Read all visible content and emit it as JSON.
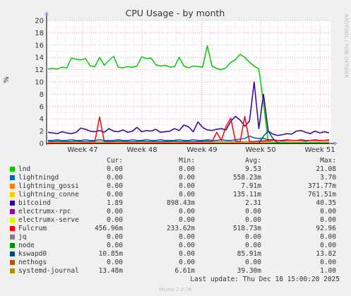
{
  "chart_data": {
    "type": "line",
    "title": "CPU Usage - by month",
    "ylabel": "%",
    "ylim": [
      0,
      20
    ],
    "yticks": [
      0,
      2,
      4,
      6,
      8,
      10,
      12,
      14,
      16,
      18,
      20
    ],
    "xticks": [
      "Week 47",
      "Week 48",
      "Week 49",
      "Week 50",
      "Week 51"
    ],
    "side_label": "RRDTOOL / TOBI OETIKER",
    "grid": true,
    "series": [
      {
        "name": "lnd",
        "color": "#00cc00",
        "values": [
          12.1,
          12.2,
          12.1,
          12.4,
          12.3,
          13.9,
          13.7,
          13.6,
          13.8,
          12.6,
          12.5,
          14.0,
          12.7,
          13.5,
          14.2,
          12.4,
          12.3,
          12.5,
          12.4,
          12.6,
          14.1,
          13.8,
          13.9,
          12.8,
          12.6,
          12.7,
          12.4,
          12.5,
          14.0,
          12.6,
          12.3,
          12.6,
          12.5,
          12.4,
          15.9,
          12.6,
          12.2,
          12.0,
          12.3,
          13.2,
          13.6,
          14.5,
          14.0,
          13.2,
          12.6,
          12.1,
          6.5,
          0.3,
          0.2,
          0.2,
          0.2,
          0.2,
          0.2,
          0.2,
          0.2,
          0.2,
          0.2,
          0.2,
          0.2,
          0.2,
          0.2
        ]
      },
      {
        "name": "lightningd",
        "color": "#0066b3",
        "values": [
          0.5,
          0.5,
          0.6,
          0.5,
          0.5,
          0.6,
          0.5,
          0.5,
          0.6,
          0.5,
          0.5,
          0.6,
          0.5,
          0.5,
          0.5,
          0.6,
          0.5,
          0.5,
          0.6,
          0.5,
          0.5,
          0.6,
          0.5,
          0.5,
          0.6,
          0.5,
          0.5,
          0.5,
          0.6,
          0.5,
          0.5,
          0.6,
          0.5,
          0.5,
          0.6,
          0.5,
          0.5,
          0.6,
          0.5,
          0.5,
          0.6,
          0.7,
          0.8,
          1.2,
          0.9,
          0.8,
          0.8,
          0.6,
          0.6,
          0.5,
          0.5,
          0.6,
          0.5,
          0.5,
          0.6,
          0.5,
          0.5,
          0.6,
          0.5,
          0.5,
          0.6
        ]
      },
      {
        "name": "lightning_gossi",
        "color": "#ff8000",
        "values": [
          0.3,
          0.3,
          0.3,
          0.3,
          0.3,
          0.3,
          0.3,
          0.3,
          0.3,
          0.3,
          0.3,
          0.3,
          0.3,
          0.3,
          0.3,
          0.3,
          0.3,
          0.3,
          0.3,
          0.3,
          0.3,
          0.3,
          0.3,
          0.3,
          0.3,
          0.3,
          0.3,
          0.3,
          0.3,
          0.3,
          0.3,
          0.3,
          0.3,
          0.3,
          0.3,
          0.3,
          0.3,
          0.3,
          0.3,
          0.3,
          0.3,
          0.3,
          0.3,
          0.3,
          0.3,
          0.3,
          0.3,
          0.2,
          0.1,
          0.1,
          0.1,
          0.1,
          0.1,
          0.1,
          0.1,
          0.1,
          0.1,
          0.1,
          0.1,
          0.1,
          0.1
        ]
      },
      {
        "name": "lightning_conne",
        "color": "#ffcc00",
        "values": [
          0.1,
          0.1,
          0.1,
          0.1,
          0.1,
          0.1,
          0.1,
          0.1,
          0.1,
          0.1,
          0.1,
          0.1,
          0.1,
          0.1,
          0.1,
          0.1,
          0.1,
          0.1,
          0.1,
          0.1,
          0.1,
          0.1,
          0.1,
          0.1,
          0.1,
          0.1,
          0.1,
          0.1,
          0.1,
          0.1,
          0.1,
          0.1,
          0.1,
          0.1,
          0.1,
          0.1,
          0.1,
          0.1,
          0.1,
          0.1,
          0.1,
          0.1,
          0.1,
          0.1,
          0.1,
          0.1,
          0.1,
          0.1,
          0.1,
          0.1,
          0.1,
          0.1,
          0.1,
          0.1,
          0.1,
          0.1,
          0.1,
          0.1,
          0.1,
          0.1,
          0.1
        ]
      },
      {
        "name": "bitcoind",
        "color": "#330099",
        "values": [
          1.8,
          1.7,
          1.6,
          1.9,
          1.7,
          1.6,
          1.8,
          2.5,
          2.3,
          2.0,
          1.9,
          2.1,
          1.8,
          2.4,
          2.0,
          1.9,
          2.2,
          1.8,
          2.0,
          2.6,
          1.9,
          2.1,
          2.0,
          2.3,
          1.8,
          1.9,
          2.0,
          2.4,
          2.1,
          3.0,
          2.7,
          1.9,
          3.5,
          2.6,
          2.2,
          2.1,
          2.3,
          2.4,
          2.2,
          3.6,
          4.4,
          3.8,
          2.8,
          3.6,
          10.0,
          2.4,
          8.0,
          2.0,
          1.5,
          1.3,
          1.4,
          1.6,
          1.5,
          2.0,
          2.1,
          1.8,
          1.6,
          2.0,
          1.7,
          1.9,
          1.7
        ]
      },
      {
        "name": "electrumx-rpc",
        "color": "#990099",
        "values": [
          0,
          0,
          0,
          0,
          0,
          0,
          0,
          0,
          0,
          0,
          0,
          0,
          0,
          0,
          0,
          0,
          0,
          0,
          0,
          0,
          0,
          0,
          0,
          0,
          0,
          0,
          0,
          0,
          0,
          0,
          0,
          0,
          0,
          0,
          0,
          0,
          0,
          0,
          0,
          0,
          0,
          0,
          0,
          0,
          0,
          0,
          0,
          0,
          0,
          0,
          0,
          0,
          0,
          0,
          0,
          0,
          0,
          0,
          0,
          0,
          0
        ]
      },
      {
        "name": "electrumx-serve",
        "color": "#ccff00",
        "values": [
          0,
          0,
          0,
          0,
          0,
          0,
          0,
          0,
          0,
          0,
          0,
          0,
          0,
          0,
          0,
          0,
          0,
          0,
          0,
          0,
          0,
          0,
          0,
          0,
          0,
          0,
          0,
          0,
          0,
          0,
          0,
          0,
          0,
          0,
          0,
          0,
          0,
          0,
          0,
          0,
          0,
          0,
          0,
          0,
          0,
          0,
          0,
          0,
          0,
          0,
          0,
          0,
          0,
          0,
          0,
          0,
          0,
          0,
          0,
          0,
          0
        ]
      },
      {
        "name": "Fulcrum",
        "color": "#ff0000",
        "values": [
          0.3,
          0.3,
          0.4,
          0.3,
          0.3,
          0.3,
          0.4,
          0.3,
          0.3,
          0.3,
          0.3,
          4.3,
          0.3,
          0.3,
          0.3,
          0.4,
          0.3,
          0.3,
          0.3,
          0.3,
          0.4,
          0.3,
          0.3,
          0.3,
          0.3,
          0.3,
          0.3,
          0.4,
          0.3,
          0.3,
          0.3,
          0.3,
          0.3,
          0.3,
          0.4,
          0.3,
          1.8,
          0.5,
          2.8,
          4.1,
          0.4,
          0.3,
          4.4,
          0.3,
          0.3,
          0.4,
          0.4,
          0.5,
          0.5,
          0.5,
          0.4,
          0.5,
          0.5,
          0.5,
          0.5,
          0.4,
          0.5,
          0.5,
          0.5,
          0.5,
          0.5
        ]
      },
      {
        "name": "jq",
        "color": "#808080",
        "values": [
          0,
          0,
          0,
          0,
          0,
          0,
          0,
          0,
          0,
          0,
          0,
          0,
          0,
          0,
          0,
          0,
          0,
          0,
          0,
          0,
          0,
          0,
          0,
          0,
          0,
          0,
          0,
          0,
          0,
          0,
          0,
          0,
          0,
          0,
          0,
          0,
          0,
          0,
          0,
          0,
          0,
          0,
          0,
          0,
          0,
          0,
          0,
          0,
          0,
          0,
          0,
          0,
          0,
          0,
          0,
          0,
          0,
          0,
          0,
          0,
          0
        ]
      },
      {
        "name": "node",
        "color": "#008f00",
        "values": [
          0,
          0,
          0,
          0,
          0,
          0,
          0,
          0,
          0,
          0,
          0,
          0,
          0,
          0,
          0,
          0,
          0,
          0,
          0,
          0,
          0,
          0,
          0,
          0,
          0,
          0,
          0,
          0,
          0,
          0,
          0,
          0,
          0,
          0,
          0,
          0,
          0,
          0,
          0,
          0,
          0,
          0,
          0,
          0,
          0,
          0,
          0,
          0,
          0,
          0,
          0,
          0,
          0,
          0,
          0,
          0,
          0,
          0,
          0,
          0,
          0
        ]
      },
      {
        "name": "kswapd0",
        "color": "#00487d",
        "values": [
          0,
          0,
          0,
          0,
          0,
          0,
          0,
          0,
          0,
          0,
          0,
          0,
          0,
          0,
          0,
          0,
          0,
          0,
          0,
          0,
          0,
          0,
          0,
          0,
          0,
          0,
          0,
          0,
          0,
          0,
          0,
          0,
          0,
          0,
          0,
          0,
          0,
          0,
          0,
          0,
          0,
          0,
          0,
          0,
          0,
          0,
          1.2,
          2.0,
          0.8,
          0.1,
          0,
          0,
          0,
          0,
          0,
          0,
          0,
          0,
          0,
          0,
          0
        ]
      },
      {
        "name": "nethogs",
        "color": "#b35a00",
        "values": [
          0,
          0,
          0,
          0,
          0,
          0,
          0,
          0,
          0,
          0,
          0,
          0,
          0,
          0,
          0,
          0,
          0,
          0,
          0,
          0,
          0,
          0,
          0,
          0,
          0,
          0,
          0,
          0,
          0,
          0,
          0,
          0,
          0,
          0,
          0,
          0,
          0,
          0,
          0,
          0,
          0,
          0,
          0,
          0,
          0,
          0,
          0,
          0,
          0,
          0,
          0,
          0,
          0,
          0,
          0,
          0,
          0,
          0,
          0,
          0,
          0
        ]
      },
      {
        "name": "systemd-journal",
        "color": "#b38f00",
        "values": [
          0,
          0,
          0,
          0,
          0,
          0,
          0,
          0,
          0,
          0,
          0,
          0,
          0,
          0,
          0,
          0,
          0,
          0,
          0,
          0,
          0,
          0,
          0,
          0,
          0,
          0,
          0,
          0,
          0,
          0,
          0,
          0,
          0,
          0,
          0,
          0,
          0,
          0,
          0,
          0,
          0,
          0,
          0,
          0,
          0,
          0,
          0,
          0,
          0,
          0,
          0,
          0,
          0,
          0,
          0,
          0,
          0,
          0,
          0,
          0,
          0
        ]
      }
    ]
  },
  "legend": {
    "headers": {
      "cur": "Cur:",
      "min": "Min:",
      "avg": "Avg:",
      "max": "Max:"
    },
    "rows": [
      {
        "name": "lnd",
        "color": "#00cc00",
        "cur": "0.00",
        "min": "0.00",
        "avg": "9.53",
        "max": "21.08"
      },
      {
        "name": "lightningd",
        "color": "#0066b3",
        "cur": "0.00",
        "min": "0.00",
        "avg": "558.23m",
        "max": "3.70"
      },
      {
        "name": "lightning_gossi",
        "color": "#ff8000",
        "cur": "0.00",
        "min": "0.00",
        "avg": "7.91m",
        "max": "371.77m"
      },
      {
        "name": "lightning_conne",
        "color": "#ffcc00",
        "cur": "0.00",
        "min": "0.00",
        "avg": "135.11m",
        "max": "761.51m"
      },
      {
        "name": "bitcoind",
        "color": "#330099",
        "cur": "1.89",
        "min": "898.43m",
        "avg": "2.31",
        "max": "40.35"
      },
      {
        "name": "electrumx-rpc",
        "color": "#990099",
        "cur": "0.00",
        "min": "0.00",
        "avg": "0.00",
        "max": "0.00"
      },
      {
        "name": "electrumx-serve",
        "color": "#ccff00",
        "cur": "0.00",
        "min": "0.00",
        "avg": "0.00",
        "max": "0.00"
      },
      {
        "name": "Fulcrum",
        "color": "#ff0000",
        "cur": "456.96m",
        "min": "233.62m",
        "avg": "518.73m",
        "max": "92.96"
      },
      {
        "name": "jq",
        "color": "#808080",
        "cur": "0.00",
        "min": "0.00",
        "avg": "0.00",
        "max": "0.00"
      },
      {
        "name": "node",
        "color": "#008f00",
        "cur": "0.00",
        "min": "0.00",
        "avg": "0.00",
        "max": "0.00"
      },
      {
        "name": "kswapd0",
        "color": "#00487d",
        "cur": "10.85m",
        "min": "0.00",
        "avg": "85.91m",
        "max": "13.82"
      },
      {
        "name": "nethogs",
        "color": "#b35a00",
        "cur": "0.00",
        "min": "0.00",
        "avg": "0.00",
        "max": "0.00"
      },
      {
        "name": "systemd-journal",
        "color": "#b38f00",
        "cur": "13.48m",
        "min": "6.61m",
        "avg": "39.30m",
        "max": "1.00"
      }
    ]
  },
  "footer": {
    "last_update": "Last update: Thu Dec 18 15:00:20 2025",
    "version": "Munin 2.0.76"
  }
}
